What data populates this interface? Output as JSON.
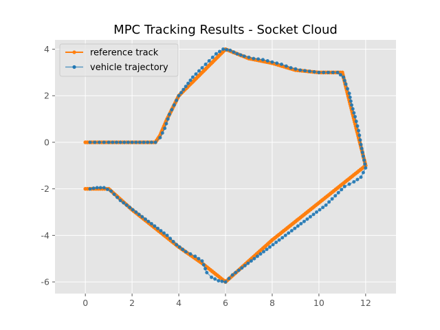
{
  "chart_data": {
    "type": "line",
    "title": "MPC Tracking Results - Socket Cloud",
    "xlabel": "",
    "ylabel": "",
    "xlim": [
      -1.3,
      13.3
    ],
    "ylim": [
      -6.5,
      4.4
    ],
    "xticks": [
      0,
      2,
      4,
      6,
      8,
      10,
      12
    ],
    "yticks": [
      -6,
      -4,
      -2,
      0,
      2,
      4
    ],
    "grid": true,
    "legend_position": "upper-left",
    "series": [
      {
        "name": "reference track",
        "color": "#ff7f0e",
        "x": [
          0,
          3,
          3.2,
          3.5,
          4,
          6,
          7,
          8,
          9,
          10,
          11,
          12,
          11,
          10,
          9,
          8,
          7,
          6,
          5,
          4,
          3,
          2,
          1,
          0
        ],
        "y": [
          0,
          0,
          0.3,
          1,
          2,
          4,
          3.6,
          3.4,
          3.1,
          3,
          3,
          -1,
          -1.8,
          -2.6,
          -3.4,
          -4.2,
          -5.1,
          -6,
          -5.2,
          -4.5,
          -3.7,
          -2.9,
          -2,
          -2
        ]
      },
      {
        "name": "vehicle trajectory",
        "color": "#1f77b4",
        "x": [
          0.2,
          0.6,
          1,
          1.5,
          2,
          2.5,
          3,
          3.2,
          3.4,
          3.6,
          3.8,
          4,
          4.3,
          4.6,
          5,
          5.3,
          5.6,
          5.9,
          6.2,
          6.5,
          6.8,
          7.2,
          7.6,
          8,
          8.4,
          8.8,
          9.2,
          9.6,
          10,
          10.4,
          10.8,
          11.05,
          11.15,
          11.3,
          11.4,
          11.55,
          11.7,
          11.8,
          11.9,
          12,
          11.8,
          11.5,
          11.1,
          10.7,
          10.3,
          9.9,
          9.5,
          9.1,
          8.7,
          8.3,
          7.9,
          7.5,
          7.1,
          6.7,
          6.3,
          6.0,
          5.7,
          5.4,
          5.2,
          5.0,
          4.7,
          4.3,
          3.9,
          3.5,
          3.1,
          2.7,
          2.3,
          1.9,
          1.5,
          1.1,
          0.8,
          0.5,
          0.2
        ],
        "y": [
          0,
          0,
          0,
          0,
          0,
          0,
          0,
          0.2,
          0.6,
          1.2,
          1.6,
          2.0,
          2.4,
          2.8,
          3.2,
          3.5,
          3.8,
          4.0,
          3.95,
          3.8,
          3.7,
          3.6,
          3.55,
          3.45,
          3.35,
          3.2,
          3.1,
          3.05,
          3.0,
          3.0,
          3.0,
          2.8,
          2.5,
          2.1,
          1.6,
          1.1,
          0.5,
          -0.1,
          -0.6,
          -1.1,
          -1.5,
          -1.7,
          -1.9,
          -2.3,
          -2.7,
          -3.0,
          -3.3,
          -3.6,
          -3.9,
          -4.2,
          -4.5,
          -4.8,
          -5.1,
          -5.4,
          -5.7,
          -6.0,
          -5.95,
          -5.8,
          -5.6,
          -5.1,
          -4.9,
          -4.7,
          -4.4,
          -4.0,
          -3.7,
          -3.4,
          -3.1,
          -2.8,
          -2.5,
          -2.1,
          -1.95,
          -1.95,
          -2.0
        ]
      }
    ]
  }
}
